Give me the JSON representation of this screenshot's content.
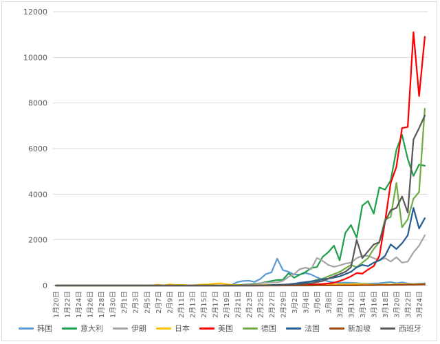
{
  "chart_data": {
    "type": "line",
    "title": "",
    "xlabel": "",
    "ylabel": "",
    "ylim": [
      0,
      12000
    ],
    "yticks": [
      0,
      2000,
      4000,
      6000,
      8000,
      10000,
      12000
    ],
    "grid": "horizontal",
    "legend_position": "bottom",
    "x": [
      "1月20日",
      "1月21日",
      "1月22日",
      "1月23日",
      "1月24日",
      "1月25日",
      "1月26日",
      "1月27日",
      "1月28日",
      "1月29日",
      "1月30日",
      "1月31日",
      "2月1日",
      "2月2日",
      "2月3日",
      "2月4日",
      "2月5日",
      "2月6日",
      "2月7日",
      "2月8日",
      "2月9日",
      "2月10日",
      "2月11日",
      "2月12日",
      "2月13日",
      "2月14日",
      "2月15日",
      "2月16日",
      "2月17日",
      "2月18日",
      "2月19日",
      "2月20日",
      "2月21日",
      "2月22日",
      "2月23日",
      "2月24日",
      "2月25日",
      "2月26日",
      "2月27日",
      "2月28日",
      "2月29日",
      "3月1日",
      "3月2日",
      "3月3日",
      "3月4日",
      "3月5日",
      "3月6日",
      "3月7日",
      "3月8日",
      "3月9日",
      "3月10日",
      "3月11日",
      "3月12日",
      "3月13日",
      "3月14日",
      "3月15日",
      "3月16日",
      "3月17日",
      "3月18日",
      "3月19日",
      "3月20日",
      "3月21日",
      "3月22日",
      "3月23日",
      "3月24日",
      "3月25日"
    ],
    "x_tick_labels": [
      "1月20日",
      "1月22日",
      "1月24日",
      "1月26日",
      "1月28日",
      "1月30日",
      "2月1日",
      "2月3日",
      "2月5日",
      "2月7日",
      "2月9日",
      "2月11日",
      "2月13日",
      "2月15日",
      "2月17日",
      "2月19日",
      "2月21日",
      "2月23日",
      "2月25日",
      "2月27日",
      "2月29日",
      "3月2日",
      "3月4日",
      "3月6日",
      "3月8日",
      "3月10日",
      "3月12日",
      "3月14日",
      "3月16日",
      "3月18日",
      "3月20日",
      "3月22日",
      "3月24日"
    ],
    "series": [
      {
        "name": "韩国",
        "color": "#5b9bd5",
        "values": [
          0,
          0,
          0,
          0,
          0,
          0,
          0,
          0,
          0,
          0,
          0,
          0,
          0,
          0,
          0,
          0,
          0,
          0,
          0,
          0,
          0,
          0,
          0,
          0,
          0,
          0,
          0,
          0,
          0,
          0,
          0,
          30,
          150,
          200,
          210,
          160,
          280,
          500,
          580,
          1180,
          680,
          600,
          480,
          480,
          550,
          480,
          360,
          260,
          180,
          140,
          120,
          130,
          120,
          110,
          80,
          80,
          90,
          100,
          130,
          150,
          100,
          140,
          90,
          70,
          80,
          100
        ]
      },
      {
        "name": "意大利",
        "color": "#20a04b",
        "values": [
          0,
          0,
          0,
          0,
          0,
          0,
          0,
          0,
          0,
          0,
          0,
          0,
          0,
          0,
          0,
          0,
          0,
          0,
          0,
          0,
          0,
          0,
          0,
          0,
          0,
          0,
          0,
          0,
          0,
          0,
          0,
          0,
          10,
          40,
          50,
          80,
          100,
          150,
          200,
          240,
          250,
          540,
          340,
          480,
          590,
          770,
          810,
          1250,
          1460,
          1750,
          1100,
          2300,
          2650,
          2100,
          3500,
          3700,
          3150,
          4300,
          4200,
          4600,
          5950,
          6600,
          5550,
          4800,
          5300,
          5250
        ]
      },
      {
        "name": "伊朗",
        "color": "#a5a5a5",
        "values": [
          0,
          0,
          0,
          0,
          0,
          0,
          0,
          0,
          0,
          0,
          0,
          0,
          0,
          0,
          0,
          0,
          0,
          0,
          0,
          0,
          0,
          0,
          0,
          0,
          0,
          0,
          0,
          0,
          0,
          0,
          0,
          0,
          10,
          20,
          40,
          60,
          100,
          120,
          130,
          140,
          200,
          380,
          500,
          720,
          780,
          720,
          1210,
          1080,
          900,
          820,
          880,
          960,
          1000,
          1200,
          1300,
          1300,
          1200,
          1100,
          1200,
          1050,
          1240,
          1000,
          1050,
          1450,
          1750,
          2200
        ]
      },
      {
        "name": "日本",
        "color": "#ffc000",
        "values": [
          0,
          0,
          0,
          0,
          0,
          0,
          0,
          0,
          0,
          0,
          0,
          0,
          0,
          0,
          0,
          0,
          0,
          5,
          40,
          0,
          50,
          20,
          30,
          15,
          10,
          30,
          45,
          55,
          80,
          100,
          60,
          30,
          20,
          10,
          10,
          15,
          20,
          30,
          20,
          30,
          40,
          20,
          30,
          40,
          50,
          40,
          60,
          50,
          50,
          40,
          60,
          50,
          60,
          70,
          60,
          50,
          30,
          40,
          50,
          40,
          60,
          70,
          60,
          50,
          60,
          70
        ]
      },
      {
        "name": "美国",
        "color": "#ff0000",
        "values": [
          0,
          0,
          0,
          0,
          0,
          0,
          0,
          0,
          0,
          0,
          0,
          0,
          0,
          0,
          0,
          0,
          0,
          0,
          0,
          0,
          0,
          0,
          0,
          0,
          0,
          0,
          0,
          0,
          0,
          0,
          0,
          0,
          0,
          0,
          0,
          0,
          0,
          0,
          0,
          0,
          3,
          5,
          10,
          15,
          20,
          40,
          50,
          70,
          90,
          120,
          200,
          290,
          400,
          550,
          520,
          700,
          850,
          1300,
          2800,
          4500,
          5200,
          6900,
          6950,
          11100,
          8300,
          10900
        ]
      },
      {
        "name": "德国",
        "color": "#70ad47",
        "values": [
          0,
          0,
          0,
          0,
          0,
          0,
          0,
          0,
          0,
          0,
          0,
          0,
          0,
          0,
          0,
          0,
          0,
          0,
          0,
          0,
          0,
          0,
          0,
          0,
          0,
          0,
          0,
          0,
          0,
          0,
          0,
          0,
          0,
          0,
          0,
          0,
          5,
          10,
          20,
          30,
          40,
          50,
          60,
          70,
          100,
          180,
          250,
          300,
          400,
          500,
          600,
          750,
          900,
          800,
          1000,
          1200,
          1600,
          1900,
          2900,
          3000,
          4500,
          2550,
          2900,
          3800,
          4100,
          7750
        ]
      },
      {
        "name": "法国",
        "color": "#255e91",
        "values": [
          0,
          0,
          0,
          0,
          0,
          0,
          0,
          0,
          0,
          0,
          0,
          0,
          0,
          0,
          0,
          0,
          0,
          0,
          0,
          0,
          0,
          0,
          0,
          0,
          0,
          0,
          0,
          0,
          0,
          0,
          0,
          0,
          0,
          0,
          0,
          0,
          5,
          10,
          20,
          30,
          40,
          50,
          80,
          120,
          150,
          180,
          220,
          280,
          300,
          350,
          400,
          500,
          600,
          800,
          900,
          850,
          1000,
          1100,
          1300,
          1800,
          1600,
          1850,
          2200,
          3400,
          2500,
          2950
        ]
      },
      {
        "name": "新加坡",
        "color": "#9e480e",
        "values": [
          0,
          0,
          0,
          0,
          0,
          0,
          0,
          0,
          0,
          0,
          0,
          0,
          0,
          0,
          0,
          0,
          0,
          0,
          0,
          0,
          0,
          0,
          0,
          0,
          0,
          0,
          0,
          0,
          0,
          0,
          0,
          0,
          0,
          0,
          0,
          0,
          0,
          0,
          0,
          0,
          0,
          0,
          0,
          0,
          0,
          0,
          5,
          5,
          5,
          5,
          10,
          10,
          10,
          10,
          15,
          15,
          15,
          20,
          20,
          25,
          30,
          30,
          40,
          40,
          45,
          50
        ]
      },
      {
        "name": "西班牙",
        "color": "#595959",
        "values": [
          0,
          0,
          0,
          0,
          0,
          0,
          0,
          0,
          0,
          0,
          0,
          0,
          0,
          0,
          0,
          0,
          0,
          0,
          0,
          0,
          0,
          0,
          0,
          0,
          0,
          0,
          0,
          0,
          0,
          0,
          0,
          0,
          0,
          0,
          0,
          0,
          0,
          0,
          5,
          10,
          20,
          30,
          40,
          60,
          80,
          100,
          150,
          200,
          300,
          400,
          500,
          600,
          800,
          2000,
          1200,
          1500,
          1800,
          1900,
          2800,
          3300,
          3400,
          3900,
          3200,
          6400,
          6900,
          7450
        ]
      }
    ]
  }
}
